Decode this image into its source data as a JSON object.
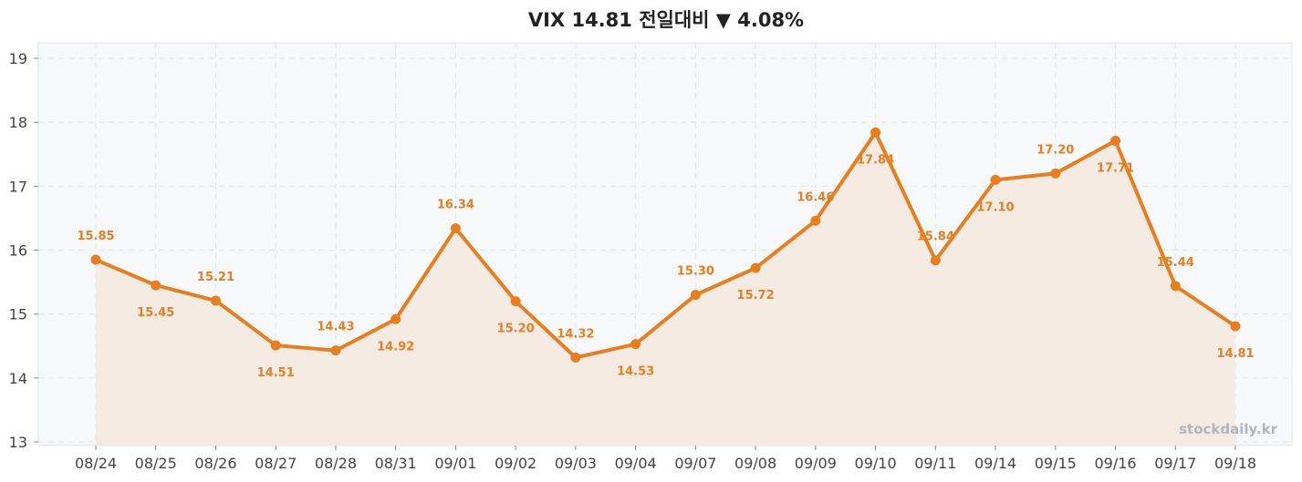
{
  "chart_data": {
    "type": "line",
    "title": "VIX 14.81 전일대비 ▼ 4.08%",
    "xlabel": "",
    "ylabel": "",
    "categories": [
      "08/24",
      "08/25",
      "08/26",
      "08/27",
      "08/28",
      "08/31",
      "09/01",
      "09/02",
      "09/03",
      "09/04",
      "09/07",
      "09/08",
      "09/09",
      "09/10",
      "09/11",
      "09/14",
      "09/15",
      "09/16",
      "09/17",
      "09/18"
    ],
    "series": [
      {
        "values": [
          15.85,
          15.45,
          15.21,
          14.51,
          14.43,
          14.92,
          16.34,
          15.2,
          14.32,
          14.53,
          15.3,
          15.72,
          16.46,
          17.84,
          15.84,
          17.1,
          17.2,
          17.71,
          15.44,
          14.81
        ],
        "labels": [
          "15.85",
          "15.45",
          "15.21",
          "14.51",
          "14.43",
          "14.92",
          "16.34",
          "15.20",
          "14.32",
          "14.53",
          "15.30",
          "15.72",
          "16.46",
          "17.84",
          "15.84",
          "17.10",
          "17.20",
          "17.71",
          "15.44",
          "14.81"
        ],
        "label_pos": [
          "above",
          "below",
          "above",
          "below",
          "above",
          "below",
          "above",
          "below",
          "above",
          "below",
          "above",
          "below",
          "above",
          "below",
          "above",
          "below",
          "above",
          "below",
          "above",
          "below"
        ],
        "color": "#e67e22",
        "fill": "#f5e9de"
      }
    ],
    "ylim": [
      13,
      19.3
    ],
    "yticks": [
      13,
      14,
      15,
      16,
      17,
      18,
      19
    ],
    "grid": true,
    "legend": "none",
    "background": "#f7f8fa",
    "grid_color": "#e3e6ea",
    "watermark": "stockdaily.kr"
  }
}
